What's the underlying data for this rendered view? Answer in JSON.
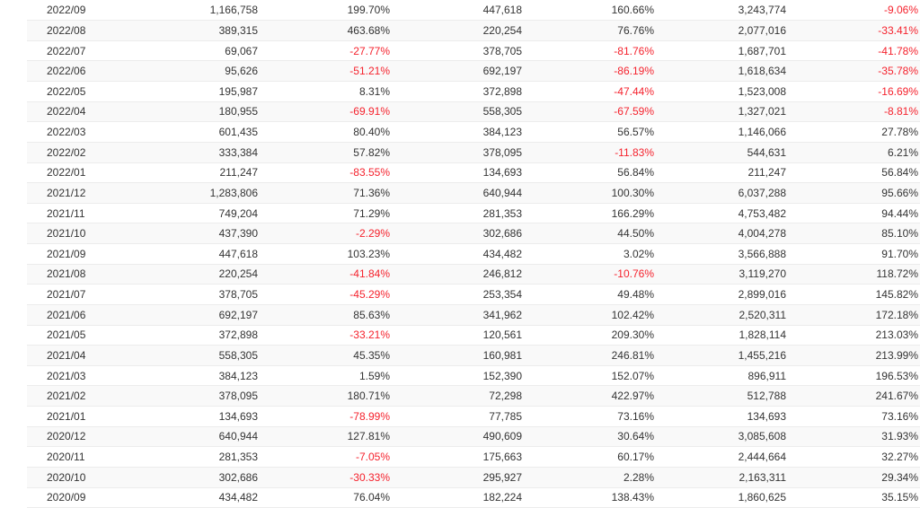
{
  "colors": {
    "negative_percent": "#f5222d",
    "text": "#333333",
    "row_stripe": "#f9f9f9",
    "row_border": "#ececec"
  },
  "table": {
    "columns": [
      "month",
      "monthly_value",
      "mom_change",
      "prior_year_month_value",
      "yoy_change",
      "cumulative_value",
      "cumulative_yoy_change"
    ],
    "rows": [
      [
        "2022/09",
        "1,166,758",
        "199.70%",
        "447,618",
        "160.66%",
        "3,243,774",
        "-9.06%"
      ],
      [
        "2022/08",
        "389,315",
        "463.68%",
        "220,254",
        "76.76%",
        "2,077,016",
        "-33.41%"
      ],
      [
        "2022/07",
        "69,067",
        "-27.77%",
        "378,705",
        "-81.76%",
        "1,687,701",
        "-41.78%"
      ],
      [
        "2022/06",
        "95,626",
        "-51.21%",
        "692,197",
        "-86.19%",
        "1,618,634",
        "-35.78%"
      ],
      [
        "2022/05",
        "195,987",
        "8.31%",
        "372,898",
        "-47.44%",
        "1,523,008",
        "-16.69%"
      ],
      [
        "2022/04",
        "180,955",
        "-69.91%",
        "558,305",
        "-67.59%",
        "1,327,021",
        "-8.81%"
      ],
      [
        "2022/03",
        "601,435",
        "80.40%",
        "384,123",
        "56.57%",
        "1,146,066",
        "27.78%"
      ],
      [
        "2022/02",
        "333,384",
        "57.82%",
        "378,095",
        "-11.83%",
        "544,631",
        "6.21%"
      ],
      [
        "2022/01",
        "211,247",
        "-83.55%",
        "134,693",
        "56.84%",
        "211,247",
        "56.84%"
      ],
      [
        "2021/12",
        "1,283,806",
        "71.36%",
        "640,944",
        "100.30%",
        "6,037,288",
        "95.66%"
      ],
      [
        "2021/11",
        "749,204",
        "71.29%",
        "281,353",
        "166.29%",
        "4,753,482",
        "94.44%"
      ],
      [
        "2021/10",
        "437,390",
        "-2.29%",
        "302,686",
        "44.50%",
        "4,004,278",
        "85.10%"
      ],
      [
        "2021/09",
        "447,618",
        "103.23%",
        "434,482",
        "3.02%",
        "3,566,888",
        "91.70%"
      ],
      [
        "2021/08",
        "220,254",
        "-41.84%",
        "246,812",
        "-10.76%",
        "3,119,270",
        "118.72%"
      ],
      [
        "2021/07",
        "378,705",
        "-45.29%",
        "253,354",
        "49.48%",
        "2,899,016",
        "145.82%"
      ],
      [
        "2021/06",
        "692,197",
        "85.63%",
        "341,962",
        "102.42%",
        "2,520,311",
        "172.18%"
      ],
      [
        "2021/05",
        "372,898",
        "-33.21%",
        "120,561",
        "209.30%",
        "1,828,114",
        "213.03%"
      ],
      [
        "2021/04",
        "558,305",
        "45.35%",
        "160,981",
        "246.81%",
        "1,455,216",
        "213.99%"
      ],
      [
        "2021/03",
        "384,123",
        "1.59%",
        "152,390",
        "152.07%",
        "896,911",
        "196.53%"
      ],
      [
        "2021/02",
        "378,095",
        "180.71%",
        "72,298",
        "422.97%",
        "512,788",
        "241.67%"
      ],
      [
        "2021/01",
        "134,693",
        "-78.99%",
        "77,785",
        "73.16%",
        "134,693",
        "73.16%"
      ],
      [
        "2020/12",
        "640,944",
        "127.81%",
        "490,609",
        "30.64%",
        "3,085,608",
        "31.93%"
      ],
      [
        "2020/11",
        "281,353",
        "-7.05%",
        "175,663",
        "60.17%",
        "2,444,664",
        "32.27%"
      ],
      [
        "2020/10",
        "302,686",
        "-30.33%",
        "295,927",
        "2.28%",
        "2,163,311",
        "29.34%"
      ],
      [
        "2020/09",
        "434,482",
        "76.04%",
        "182,224",
        "138.43%",
        "1,860,625",
        "35.15%"
      ]
    ]
  }
}
